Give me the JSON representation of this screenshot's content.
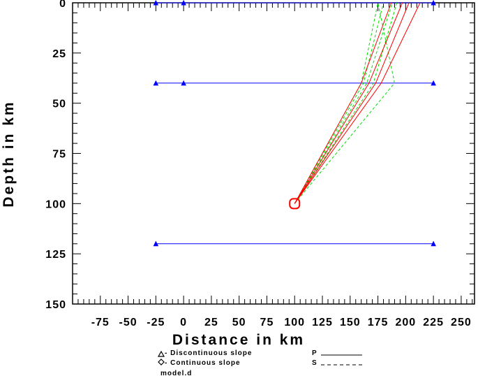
{
  "chart_data": {
    "type": "scatter",
    "xlabel": "Distance in km",
    "ylabel": "Depth in km",
    "xlim": [
      -100,
      262
    ],
    "ylim": [
      150,
      0
    ],
    "xticks": [
      -75,
      -50,
      -25,
      0,
      25,
      50,
      75,
      100,
      125,
      150,
      175,
      200,
      225,
      250
    ],
    "xtick_labels": [
      "-75",
      "-50",
      "-25",
      "0",
      "25",
      "50",
      "75",
      "100",
      "125",
      "150",
      "175",
      "200",
      "225",
      "250"
    ],
    "yticks": [
      0,
      25,
      50,
      75,
      100,
      125,
      150
    ],
    "ytick_labels": [
      "0",
      "25",
      "50",
      "75",
      "100",
      "125",
      "150"
    ],
    "layers": [
      {
        "depth": 0,
        "x_range": [
          -25,
          225
        ]
      },
      {
        "depth": 40,
        "x_range": [
          -25,
          225
        ]
      },
      {
        "depth": 120,
        "x_range": [
          -25,
          225
        ]
      }
    ],
    "layer_markers": [
      {
        "x": -25,
        "depth": 0
      },
      {
        "x": 0,
        "depth": 0
      },
      {
        "x": 225,
        "depth": 0
      },
      {
        "x": -25,
        "depth": 40
      },
      {
        "x": 0,
        "depth": 40
      },
      {
        "x": 225,
        "depth": 40
      },
      {
        "x": -25,
        "depth": 120
      },
      {
        "x": 225,
        "depth": 120
      }
    ],
    "source": {
      "x": 100,
      "depth": 100
    },
    "series": [
      {
        "name": "P",
        "color": "#ff0000",
        "rays": [
          [
            [
              100,
              100
            ],
            [
              160,
              40
            ],
            [
              187,
              0
            ]
          ],
          [
            [
              100,
              100
            ],
            [
              167,
              40
            ],
            [
              197,
              0
            ]
          ],
          [
            [
              100,
              100
            ],
            [
              173,
              40
            ],
            [
              203,
              0
            ]
          ],
          [
            [
              100,
              100
            ],
            [
              178,
              40
            ],
            [
              213,
              0
            ]
          ]
        ]
      },
      {
        "name": "S",
        "color": "#00dd00",
        "rays": [
          [
            [
              100,
              100
            ],
            [
              160,
              40
            ],
            [
              175,
              0
            ]
          ],
          [
            [
              100,
              100
            ],
            [
              162,
              40
            ],
            [
              180,
              0
            ]
          ],
          [
            [
              100,
              100
            ],
            [
              165,
              40
            ],
            [
              188,
              0
            ]
          ],
          [
            [
              100,
              100
            ],
            [
              171,
              40
            ],
            [
              192,
              0
            ]
          ],
          [
            [
              100,
              100
            ],
            [
              190,
              40
            ],
            [
              175,
              0
            ]
          ]
        ]
      }
    ],
    "colors": {
      "layer": "#0000ff",
      "p_ray": "#ff0000",
      "s_ray": "#00dd00",
      "source": "#ff0000"
    }
  },
  "legend": {
    "discontinuous_label": "- Discontinuous slope",
    "continuous_label": "- Continuous slope",
    "model_label": "model.d",
    "p_label": "P",
    "s_label": "S"
  }
}
